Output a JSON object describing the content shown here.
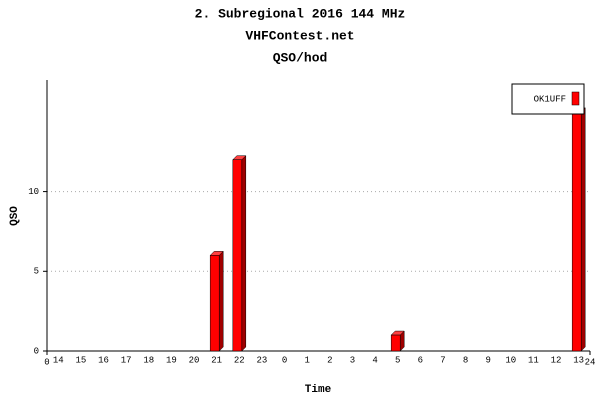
{
  "chart_data": {
    "type": "bar",
    "title": "2. Subregional 2016 144 MHz",
    "subtitle": "VHFContest.net",
    "subtitle2": "QSO/hod",
    "y_label": "QSO",
    "x_label": "Time",
    "categories": [
      "14",
      "15",
      "16",
      "17",
      "18",
      "19",
      "20",
      "21",
      "22",
      "23",
      "0",
      "1",
      "2",
      "3",
      "4",
      "5",
      "6",
      "7",
      "8",
      "9",
      "10",
      "11",
      "12",
      "13"
    ],
    "series": [
      {
        "name": "OK1UFF",
        "color": "#ff0000",
        "values": [
          0,
          0,
          0,
          0,
          0,
          0,
          0,
          6,
          12,
          0,
          0,
          0,
          0,
          0,
          0,
          1,
          0,
          0,
          0,
          0,
          0,
          0,
          0,
          15
        ]
      }
    ],
    "ylim": [
      0,
      17
    ],
    "yticks": [
      0,
      5,
      10
    ],
    "xlim": [
      0,
      24
    ],
    "xticks": [
      0,
      24
    ],
    "grid": true,
    "legend": "top-right"
  }
}
